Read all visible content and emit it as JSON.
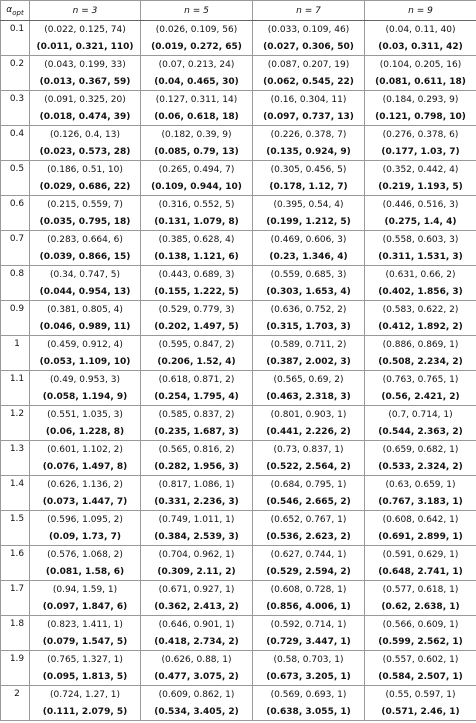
{
  "table": {
    "header": {
      "alpha": "α",
      "alpha_sub": "opt",
      "columns": [
        "n = 3",
        "n = 5",
        "n = 7",
        "n = 9"
      ]
    },
    "rows": [
      {
        "alpha": "0.1",
        "plain": [
          "(0.022, 0.125, 74)",
          "(0.026, 0.109, 56)",
          "(0.033, 0.109, 46)",
          "(0.04, 0.11, 40)"
        ],
        "bold": [
          "(0.011, 0.321, 110)",
          "(0.019, 0.272, 65)",
          "(0.027, 0.306, 50)",
          "(0.03, 0.311, 42)"
        ]
      },
      {
        "alpha": "0.2",
        "plain": [
          "(0.043, 0.199, 33)",
          "(0.07, 0.213, 24)",
          "(0.087, 0.207, 19)",
          "(0.104, 0.205, 16)"
        ],
        "bold": [
          "(0.013, 0.367, 59)",
          "(0.04, 0.465, 30)",
          "(0.062, 0.545, 22)",
          "(0.081, 0.611, 18)"
        ]
      },
      {
        "alpha": "0.3",
        "plain": [
          "(0.091, 0.325, 20)",
          "(0.127, 0.311, 14)",
          "(0.16, 0.304, 11)",
          "(0.184, 0.293, 9)"
        ],
        "bold": [
          "(0.018, 0.474, 39)",
          "(0.06, 0.618, 18)",
          "(0.097, 0.737, 13)",
          "(0.121, 0.798, 10)"
        ]
      },
      {
        "alpha": "0.4",
        "plain": [
          "(0.126, 0.4, 13)",
          "(0.182, 0.39, 9)",
          "(0.226, 0.378, 7)",
          "(0.276, 0.378, 6)"
        ],
        "bold": [
          "(0.023, 0.573, 28)",
          "(0.085, 0.79, 13)",
          "(0.135, 0.924, 9)",
          "(0.177, 1.03, 7)"
        ]
      },
      {
        "alpha": "0.5",
        "plain": [
          "(0.186, 0.51, 10)",
          "(0.265, 0.494, 7)",
          "(0.305, 0.456, 5)",
          "(0.352, 0.442, 4)"
        ],
        "bold": [
          "(0.029, 0.686, 22)",
          "(0.109, 0.944, 10)",
          "(0.178, 1.12, 7)",
          "(0.219, 1.193, 5)"
        ]
      },
      {
        "alpha": "0.6",
        "plain": [
          "(0.215, 0.559, 7)",
          "(0.316, 0.552, 5)",
          "(0.395, 0.54, 4)",
          "(0.446, 0.516, 3)"
        ],
        "bold": [
          "(0.035, 0.795, 18)",
          "(0.131, 1.079, 8)",
          "(0.199, 1.212, 5)",
          "(0.275, 1.4, 4)"
        ]
      },
      {
        "alpha": "0.7",
        "plain": [
          "(0.283, 0.664, 6)",
          "(0.385, 0.628, 4)",
          "(0.469, 0.606, 3)",
          "(0.558, 0.603, 3)"
        ],
        "bold": [
          "(0.039, 0.866, 15)",
          "(0.138, 1.121, 6)",
          "(0.23, 1.346, 4)",
          "(0.311, 1.531, 3)"
        ]
      },
      {
        "alpha": "0.8",
        "plain": [
          "(0.34, 0.747, 5)",
          "(0.443, 0.689, 3)",
          "(0.559, 0.685, 3)",
          "(0.631, 0.66, 2)"
        ],
        "bold": [
          "(0.044, 0.954, 13)",
          "(0.155, 1.222, 5)",
          "(0.303, 1.653, 4)",
          "(0.402, 1.856, 3)"
        ]
      },
      {
        "alpha": "0.9",
        "plain": [
          "(0.381, 0.805, 4)",
          "(0.529, 0.779, 3)",
          "(0.636, 0.752, 2)",
          "(0.583, 0.622, 2)"
        ],
        "bold": [
          "(0.046, 0.989, 11)",
          "(0.202, 1.497, 5)",
          "(0.315, 1.703, 3)",
          "(0.412, 1.892, 2)"
        ]
      },
      {
        "alpha": "1",
        "plain": [
          "(0.459, 0.912, 4)",
          "(0.595, 0.847, 2)",
          "(0.589, 0.711, 2)",
          "(0.886, 0.869, 1)"
        ],
        "bold": [
          "(0.053, 1.109, 10)",
          "(0.206, 1.52, 4)",
          "(0.387, 2.002, 3)",
          "(0.508, 2.234, 2)"
        ]
      },
      {
        "alpha": "1.1",
        "plain": [
          "(0.49, 0.953, 3)",
          "(0.618, 0.871, 2)",
          "(0.565, 0.69, 2)",
          "(0.763, 0.765, 1)"
        ],
        "bold": [
          "(0.058, 1.194, 9)",
          "(0.254, 1.795, 4)",
          "(0.463, 2.318, 3)",
          "(0.56, 2.421, 2)"
        ]
      },
      {
        "alpha": "1.2",
        "plain": [
          "(0.551, 1.035, 3)",
          "(0.585, 0.837, 2)",
          "(0.801, 0.903, 1)",
          "(0.7, 0.714, 1)"
        ],
        "bold": [
          "(0.06, 1.228, 8)",
          "(0.235, 1.687, 3)",
          "(0.441, 2.226, 2)",
          "(0.544, 2.363, 2)"
        ]
      },
      {
        "alpha": "1.3",
        "plain": [
          "(0.601, 1.102, 2)",
          "(0.565, 0.816, 2)",
          "(0.73, 0.837, 1)",
          "(0.659, 0.682, 1)"
        ],
        "bold": [
          "(0.076, 1.497, 8)",
          "(0.282, 1.956, 3)",
          "(0.522, 2.564, 2)",
          "(0.533, 2.324, 2)"
        ]
      },
      {
        "alpha": "1.4",
        "plain": [
          "(0.626, 1.136, 2)",
          "(0.817, 1.086, 1)",
          "(0.684, 0.795, 1)",
          "(0.63, 0.659, 1)"
        ],
        "bold": [
          "(0.073, 1.447, 7)",
          "(0.331, 2.236, 3)",
          "(0.546, 2.665, 2)",
          "(0.767, 3.183, 1)"
        ]
      },
      {
        "alpha": "1.5",
        "plain": [
          "(0.596, 1.095, 2)",
          "(0.749, 1.011, 1)",
          "(0.652, 0.767, 1)",
          "(0.608, 0.642, 1)"
        ],
        "bold": [
          "(0.09, 1.73, 7)",
          "(0.384, 2.539, 3)",
          "(0.536, 2.623, 2)",
          "(0.691, 2.899, 1)"
        ]
      },
      {
        "alpha": "1.6",
        "plain": [
          "(0.576, 1.068, 2)",
          "(0.704, 0.962, 1)",
          "(0.627, 0.744, 1)",
          "(0.591, 0.629, 1)"
        ],
        "bold": [
          "(0.081, 1.58, 6)",
          "(0.309, 2.11, 2)",
          "(0.529, 2.594, 2)",
          "(0.648, 2.741, 1)"
        ]
      },
      {
        "alpha": "1.7",
        "plain": [
          "(0.94, 1.59, 1)",
          "(0.671, 0.927, 1)",
          "(0.608, 0.728, 1)",
          "(0.577, 0.618, 1)"
        ],
        "bold": [
          "(0.097, 1.847, 6)",
          "(0.362, 2.413, 2)",
          "(0.856, 4.006, 1)",
          "(0.62, 2.638, 1)"
        ]
      },
      {
        "alpha": "1.8",
        "plain": [
          "(0.823, 1.411, 1)",
          "(0.646, 0.901, 1)",
          "(0.592, 0.714, 1)",
          "(0.566, 0.609, 1)"
        ],
        "bold": [
          "(0.079, 1.547, 5)",
          "(0.418, 2.734, 2)",
          "(0.729, 3.447, 1)",
          "(0.599, 2.562, 1)"
        ]
      },
      {
        "alpha": "1.9",
        "plain": [
          "(0.765, 1.327, 1)",
          "(0.626, 0.88, 1)",
          "(0.58, 0.703, 1)",
          "(0.557, 0.602, 1)"
        ],
        "bold": [
          "(0.095, 1.813, 5)",
          "(0.477, 3.075, 2)",
          "(0.673, 3.205, 1)",
          "(0.584, 2.507, 1)"
        ]
      },
      {
        "alpha": "2",
        "plain": [
          "(0.724, 1.27, 1)",
          "(0.609, 0.862, 1)",
          "(0.569, 0.693, 1)",
          "(0.55, 0.597, 1)"
        ],
        "bold": [
          "(0.111, 2.079, 5)",
          "(0.534, 3.405, 2)",
          "(0.638, 3.055, 1)",
          "(0.571, 2.46, 1)"
        ]
      }
    ]
  }
}
